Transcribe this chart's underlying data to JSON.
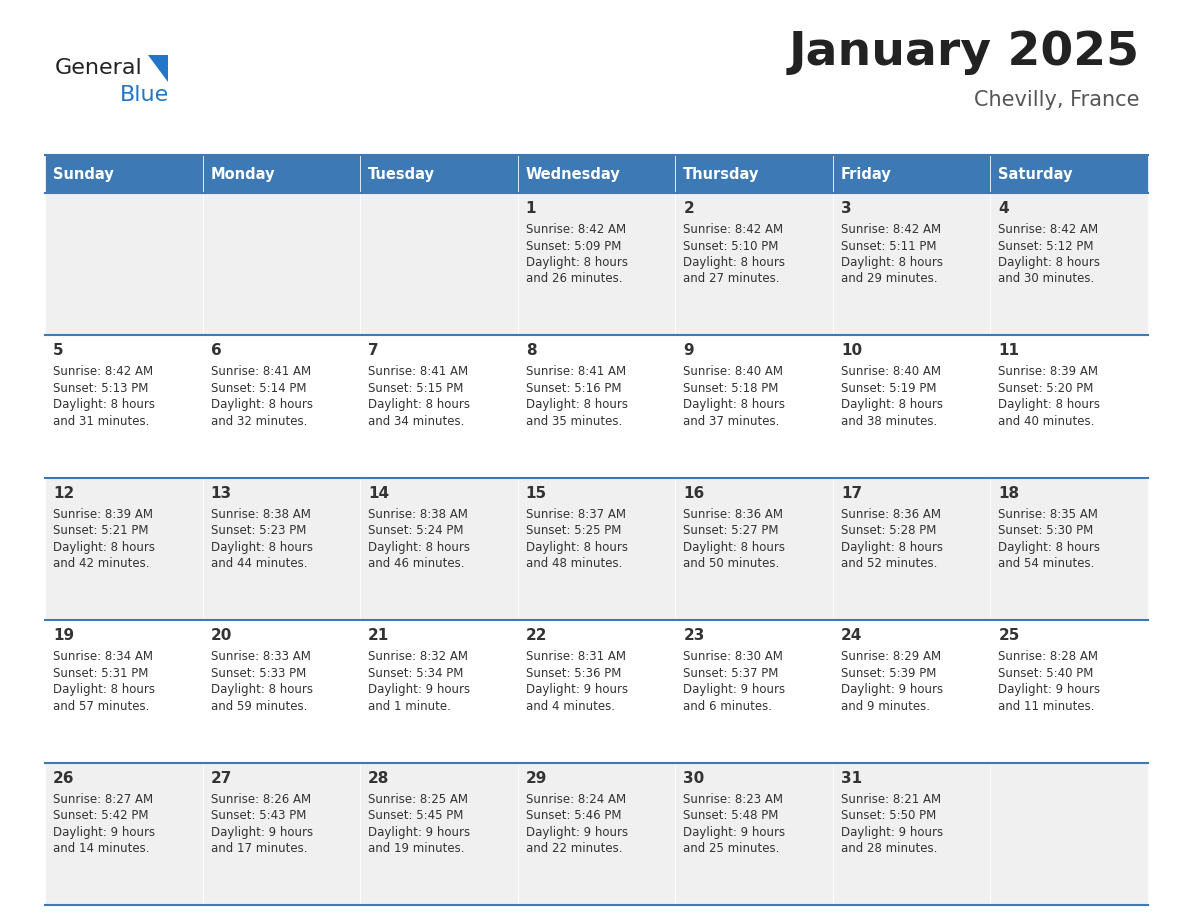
{
  "title": "January 2025",
  "subtitle": "Chevilly, France",
  "days_of_week": [
    "Sunday",
    "Monday",
    "Tuesday",
    "Wednesday",
    "Thursday",
    "Friday",
    "Saturday"
  ],
  "header_bg": "#3d7ab5",
  "header_text": "#ffffff",
  "cell_bg_odd": "#f0f0f0",
  "cell_bg_even": "#ffffff",
  "cell_text": "#333333",
  "border_color": "#3d7ab5",
  "title_color": "#222222",
  "subtitle_color": "#555555",
  "logo_general_color": "#222222",
  "logo_blue_color": "#2176c7",
  "logo_triangle_color": "#2176c7",
  "calendar": [
    [
      null,
      null,
      null,
      {
        "day": 1,
        "sunrise": "8:42 AM",
        "sunset": "5:09 PM",
        "daylight_h": "8 hours",
        "daylight_m": "and 26 minutes."
      },
      {
        "day": 2,
        "sunrise": "8:42 AM",
        "sunset": "5:10 PM",
        "daylight_h": "8 hours",
        "daylight_m": "and 27 minutes."
      },
      {
        "day": 3,
        "sunrise": "8:42 AM",
        "sunset": "5:11 PM",
        "daylight_h": "8 hours",
        "daylight_m": "and 29 minutes."
      },
      {
        "day": 4,
        "sunrise": "8:42 AM",
        "sunset": "5:12 PM",
        "daylight_h": "8 hours",
        "daylight_m": "and 30 minutes."
      }
    ],
    [
      {
        "day": 5,
        "sunrise": "8:42 AM",
        "sunset": "5:13 PM",
        "daylight_h": "8 hours",
        "daylight_m": "and 31 minutes."
      },
      {
        "day": 6,
        "sunrise": "8:41 AM",
        "sunset": "5:14 PM",
        "daylight_h": "8 hours",
        "daylight_m": "and 32 minutes."
      },
      {
        "day": 7,
        "sunrise": "8:41 AM",
        "sunset": "5:15 PM",
        "daylight_h": "8 hours",
        "daylight_m": "and 34 minutes."
      },
      {
        "day": 8,
        "sunrise": "8:41 AM",
        "sunset": "5:16 PM",
        "daylight_h": "8 hours",
        "daylight_m": "and 35 minutes."
      },
      {
        "day": 9,
        "sunrise": "8:40 AM",
        "sunset": "5:18 PM",
        "daylight_h": "8 hours",
        "daylight_m": "and 37 minutes."
      },
      {
        "day": 10,
        "sunrise": "8:40 AM",
        "sunset": "5:19 PM",
        "daylight_h": "8 hours",
        "daylight_m": "and 38 minutes."
      },
      {
        "day": 11,
        "sunrise": "8:39 AM",
        "sunset": "5:20 PM",
        "daylight_h": "8 hours",
        "daylight_m": "and 40 minutes."
      }
    ],
    [
      {
        "day": 12,
        "sunrise": "8:39 AM",
        "sunset": "5:21 PM",
        "daylight_h": "8 hours",
        "daylight_m": "and 42 minutes."
      },
      {
        "day": 13,
        "sunrise": "8:38 AM",
        "sunset": "5:23 PM",
        "daylight_h": "8 hours",
        "daylight_m": "and 44 minutes."
      },
      {
        "day": 14,
        "sunrise": "8:38 AM",
        "sunset": "5:24 PM",
        "daylight_h": "8 hours",
        "daylight_m": "and 46 minutes."
      },
      {
        "day": 15,
        "sunrise": "8:37 AM",
        "sunset": "5:25 PM",
        "daylight_h": "8 hours",
        "daylight_m": "and 48 minutes."
      },
      {
        "day": 16,
        "sunrise": "8:36 AM",
        "sunset": "5:27 PM",
        "daylight_h": "8 hours",
        "daylight_m": "and 50 minutes."
      },
      {
        "day": 17,
        "sunrise": "8:36 AM",
        "sunset": "5:28 PM",
        "daylight_h": "8 hours",
        "daylight_m": "and 52 minutes."
      },
      {
        "day": 18,
        "sunrise": "8:35 AM",
        "sunset": "5:30 PM",
        "daylight_h": "8 hours",
        "daylight_m": "and 54 minutes."
      }
    ],
    [
      {
        "day": 19,
        "sunrise": "8:34 AM",
        "sunset": "5:31 PM",
        "daylight_h": "8 hours",
        "daylight_m": "and 57 minutes."
      },
      {
        "day": 20,
        "sunrise": "8:33 AM",
        "sunset": "5:33 PM",
        "daylight_h": "8 hours",
        "daylight_m": "and 59 minutes."
      },
      {
        "day": 21,
        "sunrise": "8:32 AM",
        "sunset": "5:34 PM",
        "daylight_h": "9 hours",
        "daylight_m": "and 1 minute."
      },
      {
        "day": 22,
        "sunrise": "8:31 AM",
        "sunset": "5:36 PM",
        "daylight_h": "9 hours",
        "daylight_m": "and 4 minutes."
      },
      {
        "day": 23,
        "sunrise": "8:30 AM",
        "sunset": "5:37 PM",
        "daylight_h": "9 hours",
        "daylight_m": "and 6 minutes."
      },
      {
        "day": 24,
        "sunrise": "8:29 AM",
        "sunset": "5:39 PM",
        "daylight_h": "9 hours",
        "daylight_m": "and 9 minutes."
      },
      {
        "day": 25,
        "sunrise": "8:28 AM",
        "sunset": "5:40 PM",
        "daylight_h": "9 hours",
        "daylight_m": "and 11 minutes."
      }
    ],
    [
      {
        "day": 26,
        "sunrise": "8:27 AM",
        "sunset": "5:42 PM",
        "daylight_h": "9 hours",
        "daylight_m": "and 14 minutes."
      },
      {
        "day": 27,
        "sunrise": "8:26 AM",
        "sunset": "5:43 PM",
        "daylight_h": "9 hours",
        "daylight_m": "and 17 minutes."
      },
      {
        "day": 28,
        "sunrise": "8:25 AM",
        "sunset": "5:45 PM",
        "daylight_h": "9 hours",
        "daylight_m": "and 19 minutes."
      },
      {
        "day": 29,
        "sunrise": "8:24 AM",
        "sunset": "5:46 PM",
        "daylight_h": "9 hours",
        "daylight_m": "and 22 minutes."
      },
      {
        "day": 30,
        "sunrise": "8:23 AM",
        "sunset": "5:48 PM",
        "daylight_h": "9 hours",
        "daylight_m": "and 25 minutes."
      },
      {
        "day": 31,
        "sunrise": "8:21 AM",
        "sunset": "5:50 PM",
        "daylight_h": "9 hours",
        "daylight_m": "and 28 minutes."
      },
      null
    ]
  ]
}
